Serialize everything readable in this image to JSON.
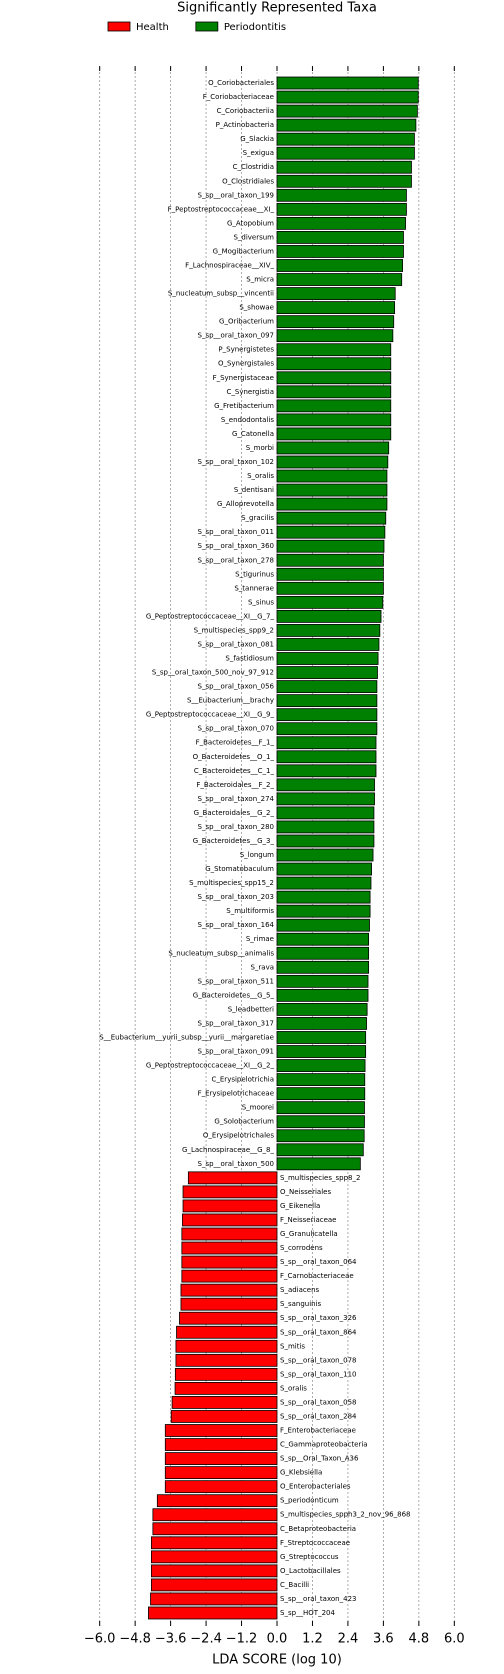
{
  "chart_data": {
    "type": "hbar",
    "title": "Significantly Represented Taxa",
    "x_label": "LDA SCORE (log 10)",
    "categories": [
      "O_Coriobacteriales",
      "F_Coriobacteriaceae",
      "C_Coriobacteriia",
      "P_Actinobacteria",
      "G_Slackia",
      "S_exigua",
      "C_Clostridia",
      "O_Clostridiales",
      "S_sp__oral_taxon_199",
      "F_Peptostreptococcaceae__XI_",
      "G_Atopobium",
      "S_diversum",
      "G_Mogibacterium",
      "F_Lachnospiraceae__XIV_",
      "S_micra",
      "S_nucleatum_subsp__vincentii",
      "S_showae",
      "G_Oribacterium",
      "S_sp__oral_taxon_097",
      "P_Synergistetes",
      "O_Synergistales",
      "F_Synergistaceae",
      "C_Synergistia",
      "G_Fretibacterium",
      "S_endodontalis",
      "G_Catonella",
      "S_morbi",
      "S_sp__oral_taxon_102",
      "S_oralis",
      "S_dentisani",
      "G_Alloprevotella",
      "S_gracilis",
      "S_sp__oral_taxon_011",
      "S_sp__oral_taxon_360",
      "S_sp__oral_taxon_278",
      "S_tigurinus",
      "S_tannerae",
      "S_sinus",
      "G_Peptostreptococcaceae__XI__G_7_",
      "S_multispecies_spp9_2",
      "S_sp__oral_taxon_081",
      "S_fastidiosum",
      "S_sp__oral_taxon_500_nov_97_912",
      "S_sp__oral_taxon_056",
      "S__Eubacterium__brachy",
      "G_Peptostreptococcaceae__XI__G_9_",
      "S_sp__oral_taxon_070",
      "F_Bacteroidetes__F_1_",
      "O_Bacteroidetes__O_1_",
      "C_Bacteroidetes__C_1_",
      "F_Bacteroidales__F_2_",
      "S_sp__oral_taxon_274",
      "G_Bacteroidales__G_2_",
      "S_sp__oral_taxon_280",
      "G_Bacteroidetes__G_3_",
      "S_longum",
      "G_Stomatobaculum",
      "S_multispecies_spp15_2",
      "S_sp__oral_taxon_203",
      "S_multiformis",
      "S_sp__oral_taxon_164",
      "S_rimae",
      "S_nucleatum_subsp__animalis",
      "S_rava",
      "S_sp__oral_taxon_511",
      "G_Bacteroidetes__G_5_",
      "S_leadbetteri",
      "S_sp__oral_taxon_317",
      "S__Eubacterium__yurii_subsp__yurii__margaretiae",
      "S_sp__oral_taxon_091",
      "G_Peptostreptococcaceae__XI__G_2_",
      "C_Erysipelotrichia",
      "F_Erysipelotrichaceae",
      "S_moorei",
      "G_Solobacterium",
      "O_Erysipelotrichales",
      "G_Lachnospiraceae__G_8_",
      "S_sp__oral_taxon_500",
      "S_multispecies_spp8_2",
      "O_Neisseriales",
      "G_Eikenella",
      "F_Neisseriaceae",
      "G_Granulicatella",
      "S_corrodens",
      "S_sp__oral_taxon_064",
      "F_Carnobacteriaceae",
      "S_adiacens",
      "S_sanguinis",
      "S_sp__oral_taxon_326",
      "S_sp__oral_taxon_864",
      "S_mitis",
      "S_sp__oral_taxon_078",
      "S_sp__oral_taxon_110",
      "S_oralis",
      "S_sp__oral_taxon_058",
      "S_sp__oral_taxon_284",
      "F_Enterobacteriaceae",
      "C_Gammaproteobacteria",
      "S_sp__Oral_Taxon_A36",
      "G_Klebsiella",
      "O_Enterobacteriales",
      "S_periodonticum",
      "S_multispecies_spph3_2_nov_96_868",
      "C_Betaproteobacteria",
      "F_Streptococcaceae",
      "G_Streptococcus",
      "O_Lactobacillales",
      "C_Bacilli",
      "S_sp__oral_taxon_423",
      "S_sp__HOT_204"
    ],
    "series": [
      {
        "name": "Health",
        "color": "#ff0000",
        "values": [
          null,
          null,
          null,
          null,
          null,
          null,
          null,
          null,
          null,
          null,
          null,
          null,
          null,
          null,
          null,
          null,
          null,
          null,
          null,
          null,
          null,
          null,
          null,
          null,
          null,
          null,
          null,
          null,
          null,
          null,
          null,
          null,
          null,
          null,
          null,
          null,
          null,
          null,
          null,
          null,
          null,
          null,
          null,
          null,
          null,
          null,
          null,
          null,
          null,
          null,
          null,
          null,
          null,
          null,
          null,
          null,
          null,
          null,
          null,
          null,
          null,
          null,
          null,
          null,
          null,
          null,
          null,
          null,
          null,
          null,
          null,
          null,
          null,
          null,
          null,
          null,
          null,
          null,
          -3.0,
          -3.18,
          -3.18,
          -3.2,
          -3.22,
          -3.22,
          -3.22,
          -3.22,
          -3.25,
          -3.25,
          -3.3,
          -3.4,
          -3.42,
          -3.42,
          -3.44,
          -3.45,
          -3.55,
          -3.58,
          -3.78,
          -3.78,
          -3.78,
          -3.78,
          -3.78,
          -4.05,
          -4.2,
          -4.2,
          -4.25,
          -4.25,
          -4.25,
          -4.25,
          -4.28,
          -4.35
        ]
      },
      {
        "name": "Periodontitis",
        "color": "#008000",
        "values": [
          4.78,
          4.78,
          4.75,
          4.7,
          4.65,
          4.65,
          4.55,
          4.55,
          4.38,
          4.38,
          4.35,
          4.28,
          4.28,
          4.25,
          4.22,
          4.0,
          3.98,
          3.95,
          3.92,
          3.85,
          3.85,
          3.85,
          3.85,
          3.85,
          3.85,
          3.85,
          3.78,
          3.75,
          3.72,
          3.72,
          3.72,
          3.68,
          3.65,
          3.62,
          3.6,
          3.6,
          3.6,
          3.58,
          3.52,
          3.48,
          3.45,
          3.42,
          3.4,
          3.38,
          3.38,
          3.38,
          3.38,
          3.35,
          3.35,
          3.35,
          3.3,
          3.3,
          3.28,
          3.28,
          3.28,
          3.25,
          3.2,
          3.18,
          3.15,
          3.15,
          3.13,
          3.1,
          3.1,
          3.1,
          3.08,
          3.08,
          3.05,
          3.03,
          3.0,
          3.0,
          2.98,
          2.97,
          2.97,
          2.96,
          2.96,
          2.95,
          2.92,
          2.82,
          null,
          null,
          null,
          null,
          null,
          null,
          null,
          null,
          null,
          null,
          null,
          null,
          null,
          null,
          null,
          null,
          null,
          null,
          null,
          null,
          null,
          null,
          null,
          null,
          null,
          null,
          null,
          null,
          null,
          null,
          null,
          null
        ]
      }
    ],
    "xlim": [
      -6.7,
      6.7
    ],
    "xticks": [
      {
        "value": -6,
        "label": "−6.0"
      },
      {
        "value": -4.8,
        "label": "−4.8"
      },
      {
        "value": -3.6,
        "label": "−3.6"
      },
      {
        "value": -2.4,
        "label": "−2.4"
      },
      {
        "value": -1.2,
        "label": "−1.2"
      },
      {
        "value": 0,
        "label": "0.0"
      },
      {
        "value": 1.2,
        "label": "1.2"
      },
      {
        "value": 2.4,
        "label": "2.4"
      },
      {
        "value": 3.6,
        "label": "3.6"
      },
      {
        "value": 4.8,
        "label": "4.8"
      },
      {
        "value": 6,
        "label": "6.0"
      }
    ],
    "grid": true,
    "legend": "top-left"
  }
}
